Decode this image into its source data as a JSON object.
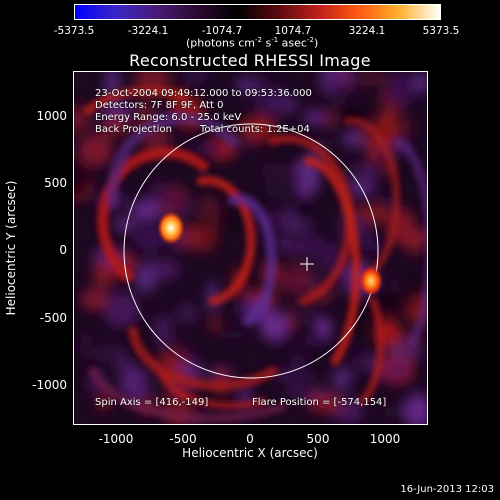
{
  "colorbar": {
    "tick_labels": [
      "-5373.5",
      "-3224.1",
      "-1074.7",
      "1074.7",
      "3224.1",
      "5373.5"
    ],
    "units_prefix": "(photons cm",
    "units_exp1": "-2",
    "units_mid": " s",
    "units_exp2": "-1",
    "units_mid2": " asec",
    "units_exp3": "-2",
    "units_suffix": ")",
    "stops": [
      "#0000ff",
      "#3a26c8",
      "#4a1a7a",
      "#2a0a30",
      "#000000",
      "#5a0a10",
      "#c0201a",
      "#ff5a10",
      "#ffb030",
      "#ffffff"
    ]
  },
  "title": "Reconstructed RHESSI Image",
  "annotations": {
    "time_range": "23-Oct-2004 09:49:12.000 to 09:53:36.000",
    "detectors": "Detectors: 7F 8F 9F, Att 0",
    "energy_range": "Energy Range: 6.0 - 25.0 keV",
    "method": "Back Projection",
    "total_counts": "Total counts: 1.2E+04",
    "spin_axis": "Spin Axis = [416,-149]",
    "flare_position": "Flare Position = [-574,154]"
  },
  "axes": {
    "xlabel": "Heliocentric X (arcsec)",
    "ylabel": "Heliocentric Y (arcsec)",
    "xticks": [
      "-1000",
      "-500",
      "0",
      "500",
      "1000"
    ],
    "yticks": [
      "1000",
      "500",
      "0",
      "-500",
      "-1000"
    ],
    "xlim": [
      -1300,
      1330
    ],
    "ylim": [
      -1330,
      1300
    ]
  },
  "image": {
    "solar_disk_radius_arcsec": 960,
    "spin_axis_marker": [
      416,
      -149
    ],
    "bright_sources": [
      {
        "x": -574,
        "y": 154
      },
      {
        "x": 890,
        "y": -230
      }
    ]
  },
  "timestamp": "16-Jun-2013 12:03"
}
